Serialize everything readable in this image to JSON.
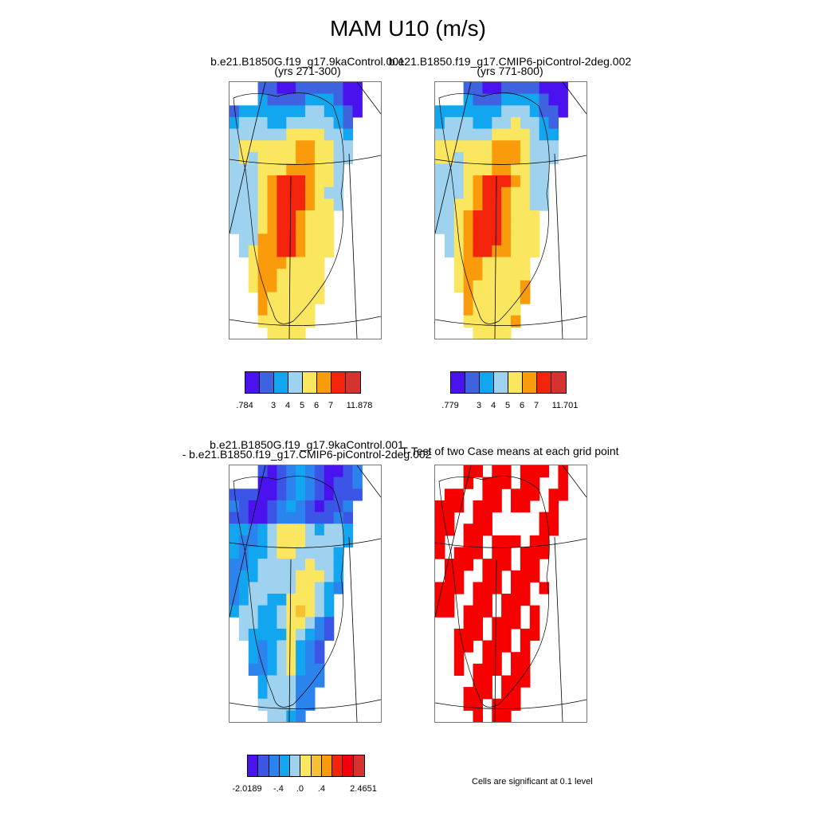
{
  "title": "MAM U10 (m/s)",
  "panels": {
    "top_left": {
      "title_line1": "b.e21.B1850G.f19_g17.9kaControl.001",
      "title_line2": "(yrs 271-300)"
    },
    "top_right": {
      "title_line1": "b.e21.B1850.f19_g17.CMIP6-piControl-2deg.002",
      "title_line2": "(yrs 771-800)"
    },
    "bottom_left": {
      "title_line1": "b.e21.B1850G.f19_g17.9kaControl.001",
      "title_line2": "- b.e21.B1850.f19_g17.CMIP6-piControl-2deg.002"
    },
    "bottom_right": {
      "title_line1": "T-Test of two Case means at each grid point"
    }
  },
  "colorbars": {
    "top_left": {
      "colors": [
        "#4b12f0",
        "#3f62e0",
        "#13a6f0",
        "#9fd2ee",
        "#fbe660",
        "#f99b0b",
        "#f3230c",
        "#d63232"
      ],
      "labels": [
        ".784",
        "3",
        "4",
        "5",
        "6",
        "7",
        "11.878"
      ]
    },
    "top_right": {
      "colors": [
        "#4b12f0",
        "#3f62e0",
        "#13a6f0",
        "#9fd2ee",
        "#fbe660",
        "#f99b0b",
        "#f3230c",
        "#d63232"
      ],
      "labels": [
        ".779",
        "3",
        "4",
        "5",
        "6",
        "7",
        "11.701"
      ]
    },
    "bottom_left": {
      "colors": [
        "#4b12f0",
        "#3b55e6",
        "#2b84ee",
        "#13a6f0",
        "#9fd2ee",
        "#fbe660",
        "#f6c130",
        "#f99b0b",
        "#f3230c",
        "#f4000c",
        "#d63232"
      ],
      "labels": [
        "-2.0189",
        "-.4",
        ".0",
        ".4",
        "2.4651"
      ]
    }
  },
  "significance_note": "Cells are significant at 0.1 level"
}
